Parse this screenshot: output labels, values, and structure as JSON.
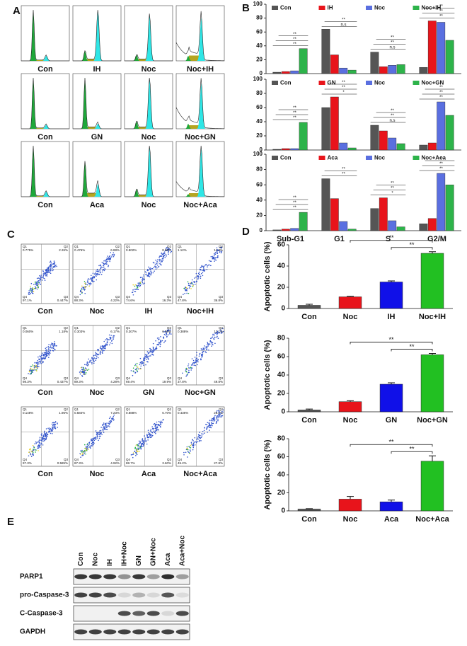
{
  "panel_labels": [
    "A",
    "B",
    "C",
    "D",
    "E"
  ],
  "histograms": [
    [
      "Con",
      "IH",
      "Noc",
      "Noc+IH"
    ],
    [
      "Con",
      "GN",
      "Noc",
      "Noc+GN"
    ],
    [
      "Con",
      "Aca",
      "Noc",
      "Noc+Aca"
    ]
  ],
  "dot_plots": {
    "quadrants": [
      "Q1",
      "Q2",
      "Q3",
      "Q4"
    ],
    "panels": [
      [
        {
          "label": "Con",
          "percents": [
            "0.775%",
            "2.26%",
            "0.447%",
            "97.1%"
          ]
        },
        {
          "label": "Noc",
          "percents": [
            "0.476%",
            "6.88%",
            "4.22%",
            "88.3%"
          ]
        },
        {
          "label": "IH",
          "percents": [
            "0.802%",
            "8.86%",
            "16.3%",
            "74.6%"
          ]
        },
        {
          "label": "Noc+IH",
          "percents": [
            "1.12%",
            "14.3%",
            "36.8%",
            "47.8%"
          ]
        }
      ],
      [
        {
          "label": "Con",
          "percents": [
            "0.060%",
            "1.18%",
            "0.437%",
            "98.3%"
          ]
        },
        {
          "label": "Noc",
          "percents": [
            "0.303%",
            "6.17%",
            "4.28%",
            "89.3%"
          ]
        },
        {
          "label": "GN",
          "percents": [
            "0.307%",
            "6.96%",
            "19.9%",
            "69.4%"
          ]
        },
        {
          "label": "Noc+GN",
          "percents": [
            "0.388%",
            "12.1%",
            "49.8%",
            "37.8%"
          ]
        }
      ],
      [
        {
          "label": "Con",
          "percents": [
            "0.148%",
            "1.96%",
            "0.585%",
            "97.3%"
          ]
        },
        {
          "label": "Noc",
          "percents": [
            "0.584%",
            "7.23%",
            "4.92%",
            "87.3%"
          ]
        },
        {
          "label": "Aca",
          "percents": [
            "0.888%",
            "6.70%",
            "3.60%",
            "88.7%"
          ]
        },
        {
          "label": "Noc+Aca",
          "percents": [
            "0.436%",
            "26.4%",
            "27.8%",
            "45.2%"
          ]
        }
      ]
    ]
  },
  "chart_data": [
    {
      "type": "bar",
      "categories": [
        null,
        null,
        null,
        null
      ],
      "ylim": [
        0,
        100
      ],
      "yticks": [
        0,
        20,
        40,
        60,
        80,
        100
      ],
      "series": [
        {
          "name": "Con",
          "color": "#555555",
          "values": [
            2,
            64,
            31,
            9
          ]
        },
        {
          "name": "IH",
          "color": "#e8141b",
          "values": [
            3,
            27,
            10,
            76
          ]
        },
        {
          "name": "Noc",
          "color": "#5a6fe0",
          "values": [
            4,
            8,
            12,
            74
          ]
        },
        {
          "name": "Noc+IH",
          "color": "#2db34a",
          "values": [
            36,
            5,
            13,
            48
          ]
        }
      ],
      "annotations": [
        {
          "text": "**",
          "category": 0
        },
        {
          "text": "**",
          "category": 0
        },
        {
          "text": "**",
          "category": 0
        },
        {
          "text": "n.s",
          "category": 1
        },
        {
          "text": "**",
          "category": 1
        },
        {
          "text": "n.s",
          "category": 2
        },
        {
          "text": "**",
          "category": 2
        },
        {
          "text": "**",
          "category": 2
        },
        {
          "text": "**",
          "category": 3
        },
        {
          "text": "**",
          "category": 3
        },
        {
          "text": "**",
          "category": 3
        }
      ]
    },
    {
      "type": "bar",
      "categories": [
        null,
        null,
        null,
        null
      ],
      "ylim": [
        0,
        100
      ],
      "yticks": [
        0,
        20,
        40,
        60,
        80,
        100
      ],
      "series": [
        {
          "name": "Con",
          "color": "#555555",
          "values": [
            1,
            60,
            35,
            7
          ]
        },
        {
          "name": "GN",
          "color": "#e8141b",
          "values": [
            2,
            75,
            27,
            10
          ]
        },
        {
          "name": "Noc",
          "color": "#5a6fe0",
          "values": [
            2,
            10,
            17,
            68
          ]
        },
        {
          "name": "Noc+GN",
          "color": "#2db34a",
          "values": [
            39,
            3,
            9,
            49
          ]
        }
      ],
      "annotations": [
        {
          "text": "**",
          "category": 0
        },
        {
          "text": "**",
          "category": 0
        },
        {
          "text": "**",
          "category": 0
        },
        {
          "text": "*",
          "category": 1
        },
        {
          "text": "**",
          "category": 1
        },
        {
          "text": "**",
          "category": 1
        },
        {
          "text": "n.s",
          "category": 2
        },
        {
          "text": "**",
          "category": 2
        },
        {
          "text": "**",
          "category": 2
        },
        {
          "text": "**",
          "category": 3
        },
        {
          "text": "**",
          "category": 3
        },
        {
          "text": "**",
          "category": 3
        }
      ]
    },
    {
      "type": "bar",
      "categories": [
        "Sub-G1",
        "G1",
        "S",
        "G2/M"
      ],
      "ylim": [
        0,
        100
      ],
      "yticks": [
        0,
        20,
        40,
        60,
        80,
        100
      ],
      "series": [
        {
          "name": "Con",
          "color": "#555555",
          "values": [
            1,
            68,
            29,
            9
          ]
        },
        {
          "name": "Aca",
          "color": "#e8141b",
          "values": [
            2,
            42,
            43,
            16
          ]
        },
        {
          "name": "Noc",
          "color": "#5a6fe0",
          "values": [
            3,
            12,
            13,
            75
          ]
        },
        {
          "name": "Noc+Aca",
          "color": "#2db34a",
          "values": [
            24,
            2,
            5,
            60
          ]
        }
      ],
      "annotations": [
        {
          "text": "**",
          "category": 0
        },
        {
          "text": "**",
          "category": 0
        },
        {
          "text": "**",
          "category": 0
        },
        {
          "text": "**",
          "category": 1
        },
        {
          "text": "**",
          "category": 1
        },
        {
          "text": "*",
          "category": 2
        },
        {
          "text": "**",
          "category": 2
        },
        {
          "text": "**",
          "category": 2
        },
        {
          "text": "**",
          "category": 3
        },
        {
          "text": "**",
          "category": 3
        },
        {
          "text": "**",
          "category": 3
        }
      ]
    },
    {
      "type": "bar",
      "y_label": "Apoptotic cells (%)",
      "categories": [
        "Con",
        "Noc",
        "IH",
        "Noc+IH"
      ],
      "values": [
        3,
        11,
        25,
        52
      ],
      "errors": [
        1,
        0.5,
        1,
        1.5
      ],
      "colors": [
        "#555555",
        "#e8141b",
        "#1010e8",
        "#22c022"
      ],
      "ylim": [
        0,
        60
      ],
      "yticks": [
        0,
        20,
        40,
        60
      ],
      "annotations": [
        {
          "text": "**",
          "from": 1,
          "to": 3
        },
        {
          "text": "**",
          "from": 2,
          "to": 3
        }
      ]
    },
    {
      "type": "bar",
      "y_label": "Apoptotic cells (%)",
      "categories": [
        "Con",
        "Noc",
        "GN",
        "Noc+GN"
      ],
      "values": [
        2,
        11,
        30,
        62
      ],
      "errors": [
        1,
        1,
        1.5,
        1.5
      ],
      "colors": [
        "#555555",
        "#e8141b",
        "#1010e8",
        "#22c022"
      ],
      "ylim": [
        0,
        80
      ],
      "yticks": [
        0,
        20,
        40,
        60,
        80
      ],
      "annotations": [
        {
          "text": "**",
          "from": 1,
          "to": 3
        },
        {
          "text": "**",
          "from": 2,
          "to": 3
        }
      ]
    },
    {
      "type": "bar",
      "y_label": "Apoptotic cells (%)",
      "categories": [
        "Con",
        "Noc",
        "Aca",
        "Noc+Aca"
      ],
      "values": [
        2,
        13,
        10,
        55
      ],
      "errors": [
        0.5,
        3,
        2,
        6
      ],
      "colors": [
        "#555555",
        "#e8141b",
        "#1010e8",
        "#22c022"
      ],
      "ylim": [
        0,
        80
      ],
      "yticks": [
        0,
        20,
        40,
        60,
        80
      ],
      "annotations": [
        {
          "text": "**",
          "from": 1,
          "to": 3
        },
        {
          "text": "**",
          "from": 2,
          "to": 3
        }
      ]
    }
  ],
  "western": {
    "lanes": [
      "Con",
      "Noc",
      "IH",
      "IH+Noc",
      "GN",
      "GN+Noc",
      "Aca",
      "Aca+Noc"
    ],
    "proteins": [
      "PARP1",
      "pro-Caspase-3",
      "C-Caspase-3",
      "GAPDH"
    ]
  }
}
